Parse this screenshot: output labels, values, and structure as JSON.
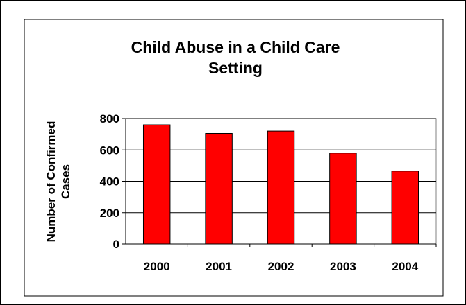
{
  "chart_data": {
    "type": "bar",
    "title_lines": [
      "Child Abuse in a Child Care",
      "Setting"
    ],
    "ylabel_lines": [
      "Number of Confirmed",
      "Cases"
    ],
    "xlabel": "",
    "categories": [
      "2000",
      "2001",
      "2002",
      "2003",
      "2004"
    ],
    "values": [
      760,
      705,
      720,
      580,
      465
    ],
    "ylim": [
      0,
      800
    ],
    "yticks": [
      0,
      200,
      400,
      600,
      800
    ],
    "grid": true,
    "legend": "none",
    "bar_color": "#ff0000"
  }
}
